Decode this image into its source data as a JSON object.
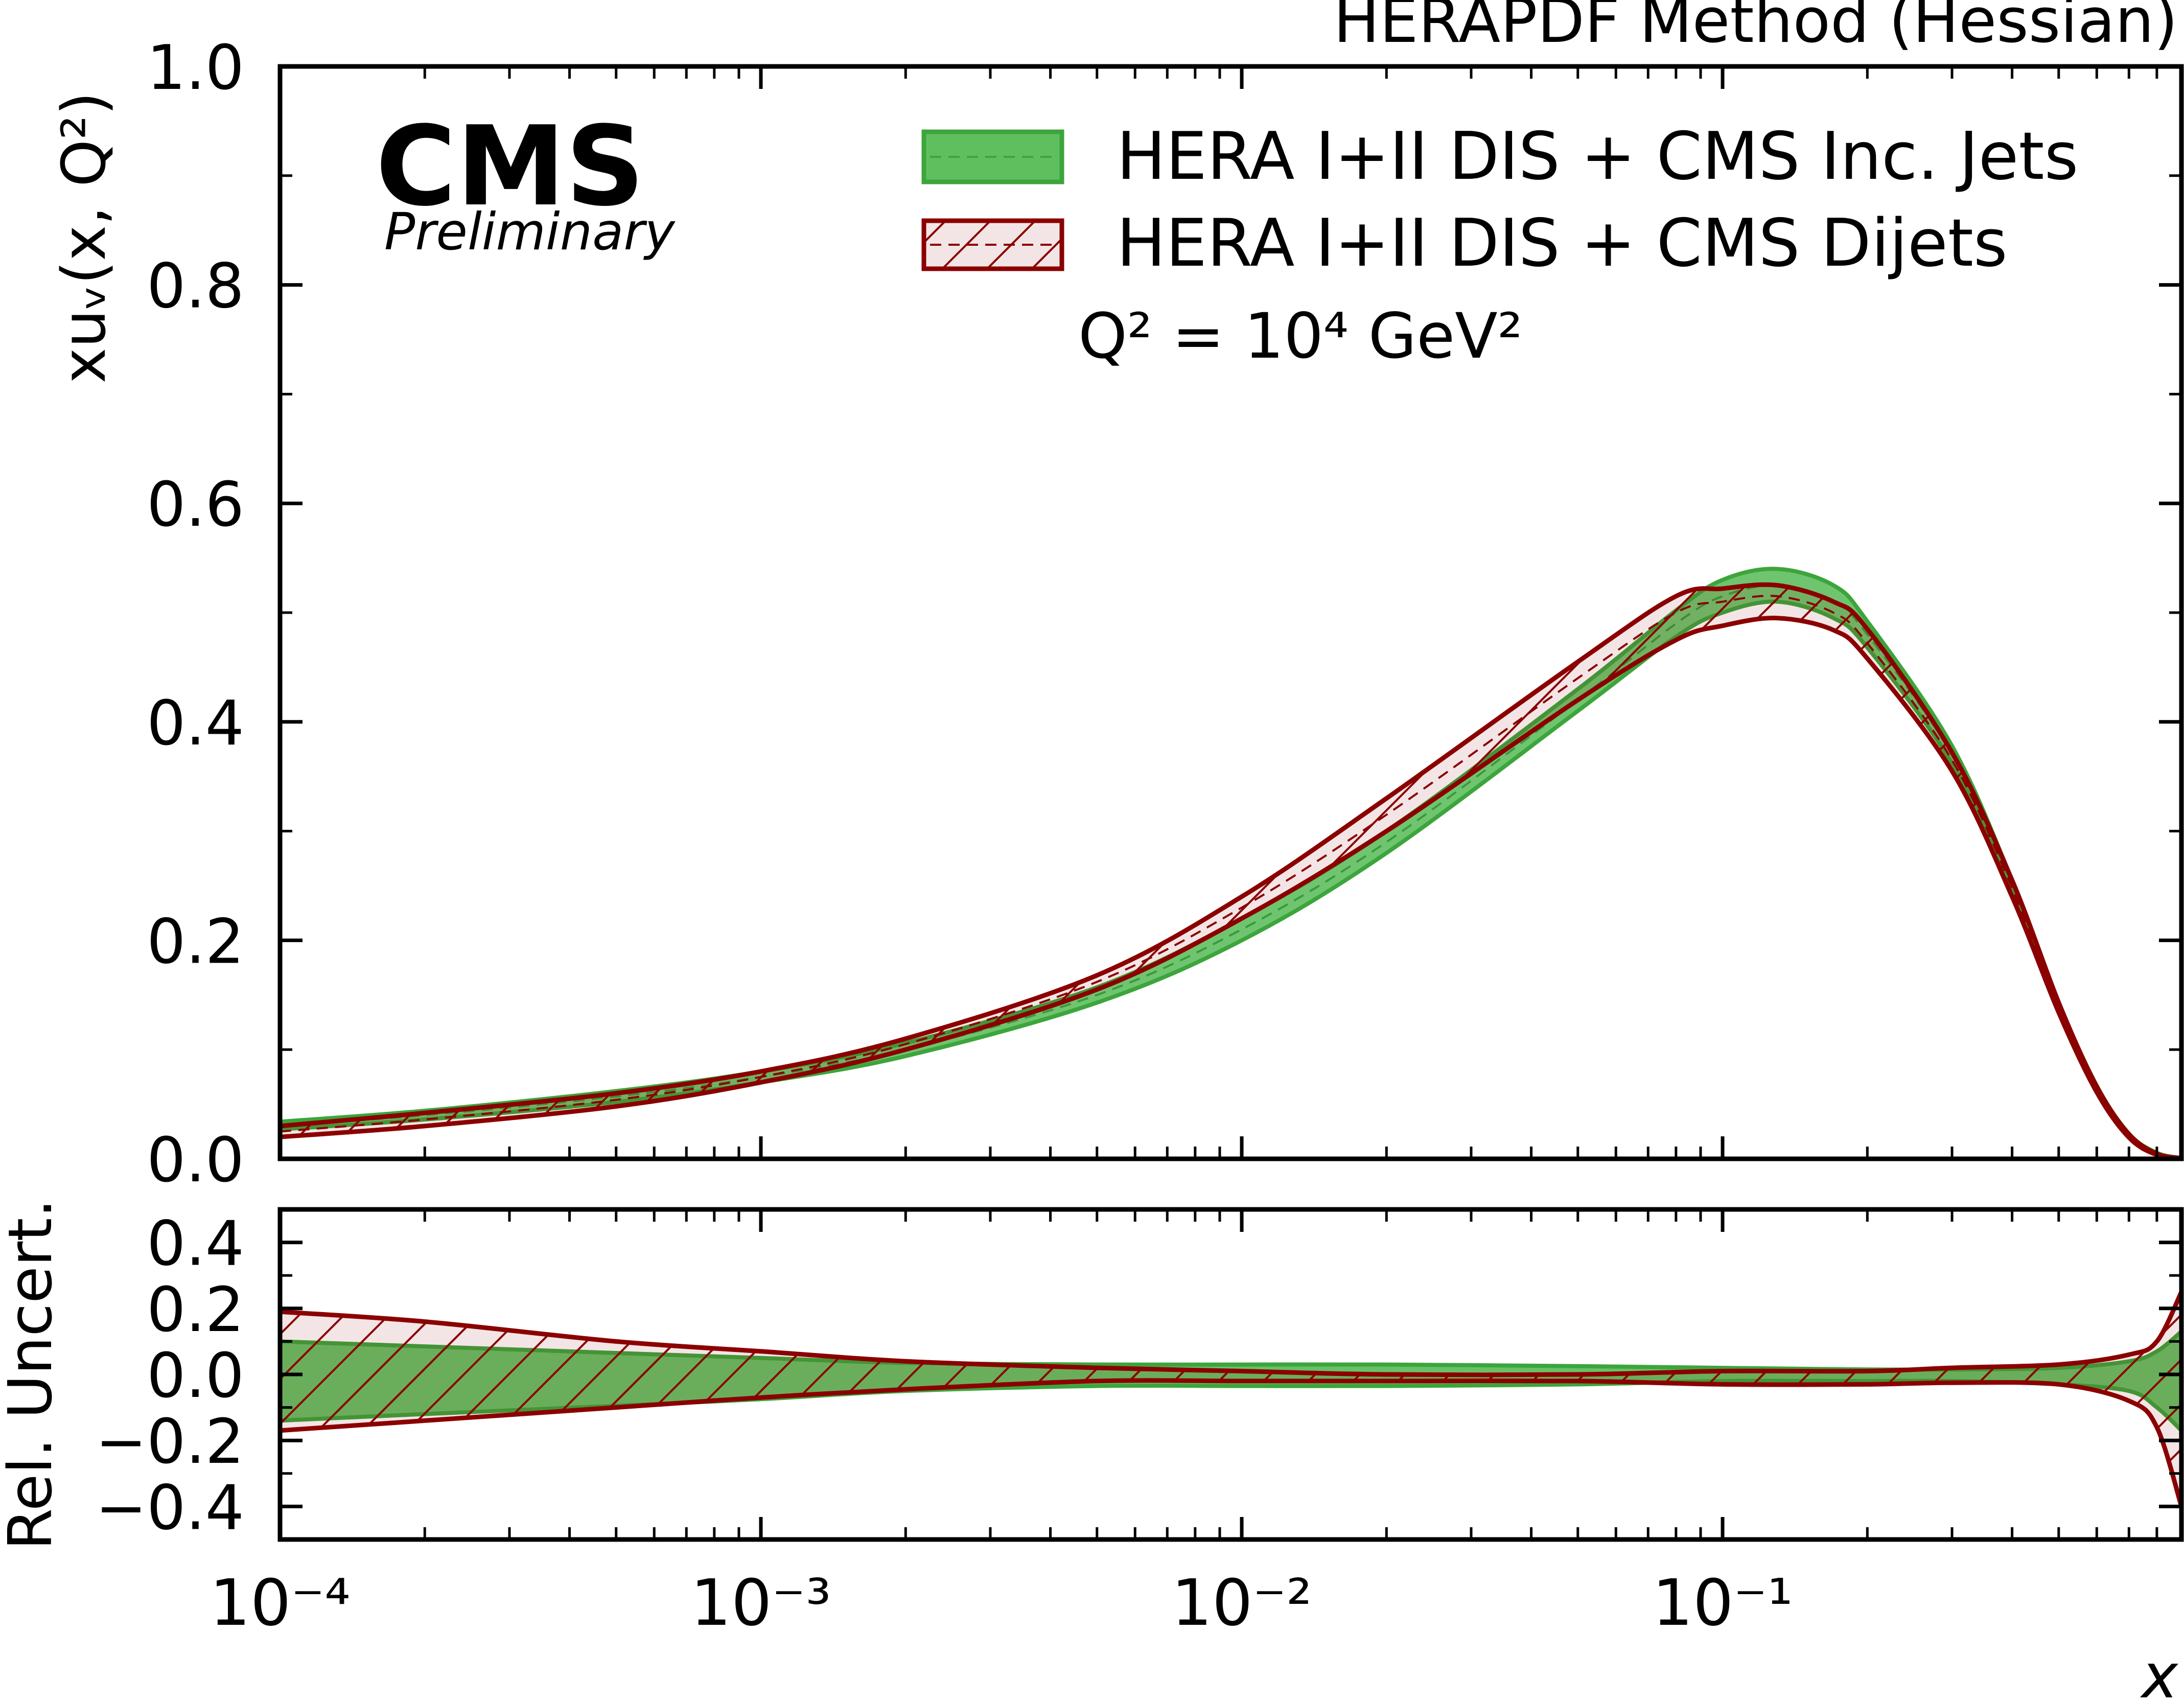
{
  "chart_data": [
    {
      "type": "area",
      "panel": "main",
      "title": "HERAPDF Method (Hessian)",
      "experiment": "CMS",
      "status": "Preliminary",
      "annotation_q2": "Q² = 10⁴ GeV²",
      "xlabel": "x",
      "ylabel": "xuᵥ(x, Q²)",
      "xscale": "log",
      "xlim": [
        0.0001,
        0.9
      ],
      "ylim": [
        0.0,
        1.0
      ],
      "xtick_labels": [
        "10⁻⁴",
        "10⁻³",
        "10⁻²",
        "10⁻¹"
      ],
      "ytick_labels": [
        "0.0",
        "0.2",
        "0.4",
        "0.6",
        "0.8",
        "1.0"
      ],
      "legend_position": "top-right",
      "x": [
        0.0001,
        0.0002,
        0.0005,
        0.001,
        0.002,
        0.005,
        0.01,
        0.02,
        0.05,
        0.08,
        0.1,
        0.13,
        0.17,
        0.2,
        0.3,
        0.4,
        0.5,
        0.6,
        0.7,
        0.8,
        0.9
      ],
      "series": [
        {
          "name": "HERA I+II DIS + CMS Inc. Jets",
          "style": "filled",
          "color": "#3ca53c",
          "central": [
            0.03,
            0.04,
            0.057,
            0.075,
            0.1,
            0.15,
            0.21,
            0.29,
            0.42,
            0.49,
            0.515,
            0.525,
            0.51,
            0.48,
            0.37,
            0.25,
            0.14,
            0.065,
            0.022,
            0.005,
            0.0005
          ],
          "lower": [
            0.027,
            0.036,
            0.052,
            0.07,
            0.094,
            0.143,
            0.2,
            0.28,
            0.41,
            0.478,
            0.5,
            0.51,
            0.495,
            0.468,
            0.362,
            0.245,
            0.137,
            0.063,
            0.021,
            0.0045,
            0.0003
          ],
          "upper": [
            0.034,
            0.044,
            0.062,
            0.08,
            0.106,
            0.157,
            0.22,
            0.3,
            0.43,
            0.502,
            0.53,
            0.54,
            0.525,
            0.492,
            0.378,
            0.255,
            0.143,
            0.067,
            0.023,
            0.0055,
            0.0007
          ]
        },
        {
          "name": "HERA I+II DIS + CMS Dijets",
          "style": "hatched",
          "color": "#8b0000",
          "central": [
            0.025,
            0.036,
            0.054,
            0.075,
            0.105,
            0.162,
            0.23,
            0.315,
            0.44,
            0.5,
            0.51,
            0.515,
            0.5,
            0.472,
            0.365,
            0.248,
            0.139,
            0.064,
            0.021,
            0.004,
            0.0003
          ],
          "lower": [
            0.02,
            0.03,
            0.048,
            0.07,
            0.1,
            0.155,
            0.22,
            0.3,
            0.42,
            0.475,
            0.488,
            0.495,
            0.484,
            0.458,
            0.355,
            0.24,
            0.134,
            0.061,
            0.0195,
            0.0036,
            0.0001
          ],
          "upper": [
            0.03,
            0.042,
            0.06,
            0.08,
            0.11,
            0.168,
            0.24,
            0.33,
            0.455,
            0.515,
            0.522,
            0.525,
            0.51,
            0.485,
            0.372,
            0.255,
            0.143,
            0.066,
            0.0225,
            0.0046,
            0.0005
          ]
        }
      ]
    },
    {
      "type": "area",
      "panel": "ratio",
      "xlabel": "x",
      "ylabel": "Rel. Uncert.",
      "xscale": "log",
      "xlim": [
        0.0001,
        0.9
      ],
      "ylim": [
        -0.5,
        0.5
      ],
      "ytick_labels": [
        "−0.4",
        "−0.2",
        "0.0",
        "0.2",
        "0.4"
      ],
      "x": [
        0.0001,
        0.0002,
        0.0005,
        0.001,
        0.002,
        0.005,
        0.01,
        0.02,
        0.05,
        0.1,
        0.2,
        0.3,
        0.5,
        0.7,
        0.8,
        0.9
      ],
      "series": [
        {
          "name": "HERA I+II DIS + CMS Inc. Jets",
          "style": "filled",
          "color": "#3ca53c",
          "lower": [
            -0.14,
            -0.12,
            -0.095,
            -0.075,
            -0.05,
            -0.035,
            -0.035,
            -0.035,
            -0.03,
            -0.02,
            -0.02,
            -0.02,
            -0.03,
            -0.05,
            -0.1,
            -0.17
          ],
          "upper": [
            0.1,
            0.085,
            0.065,
            0.05,
            0.035,
            0.03,
            0.03,
            0.03,
            0.025,
            0.02,
            0.015,
            0.015,
            0.02,
            0.04,
            0.07,
            0.13
          ]
        },
        {
          "name": "HERA I+II DIS + CMS Dijets",
          "style": "hatched",
          "color": "#8b0000",
          "lower": [
            -0.17,
            -0.14,
            -0.1,
            -0.07,
            -0.045,
            -0.02,
            -0.02,
            -0.02,
            -0.02,
            -0.03,
            -0.03,
            -0.025,
            -0.03,
            -0.08,
            -0.16,
            -0.4
          ],
          "upper": [
            0.19,
            0.16,
            0.1,
            0.07,
            0.04,
            0.02,
            0.01,
            0.0,
            0.0,
            0.01,
            0.01,
            0.02,
            0.03,
            0.06,
            0.1,
            0.25
          ]
        }
      ]
    }
  ]
}
